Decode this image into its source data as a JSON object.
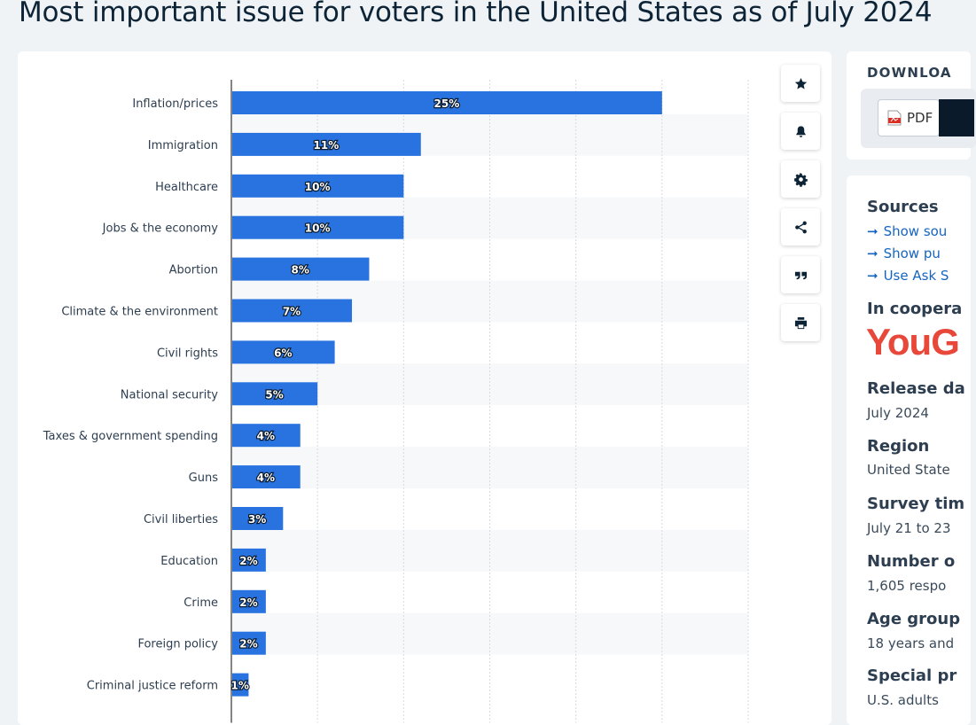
{
  "page": {
    "title": "Most important issue for voters in the United States as of July 2024"
  },
  "chart_data": {
    "type": "bar",
    "orientation": "horizontal",
    "title": "Most important issue for voters in the United States as of July 2024",
    "xlabel": "",
    "ylabel": "",
    "xlim": [
      0,
      30
    ],
    "grid": true,
    "value_suffix": "%",
    "categories": [
      "Inflation/prices",
      "Immigration",
      "Healthcare",
      "Jobs & the economy",
      "Abortion",
      "Climate & the environment",
      "Civil rights",
      "National security",
      "Taxes & government spending",
      "Guns",
      "Civil liberties",
      "Education",
      "Crime",
      "Foreign policy",
      "Criminal justice reform"
    ],
    "values": [
      25,
      11,
      10,
      10,
      8,
      7,
      6,
      5,
      4,
      4,
      3,
      2,
      2,
      2,
      1
    ],
    "bar_color": "#2873e0"
  },
  "toolbar": {
    "icons": [
      "star-icon",
      "bell-icon",
      "gear-icon",
      "share-icon",
      "quote-icon",
      "print-icon"
    ]
  },
  "download": {
    "title": "DOWNLOA",
    "pdf_label": "PDF"
  },
  "sidebar": {
    "sources_heading": "Sources",
    "links": [
      "Show sou",
      "Show pu",
      "Use Ask S"
    ],
    "cooperation_heading": "In coopera",
    "logo_text": "YouG",
    "release_heading": "Release da",
    "release_value": "July 2024",
    "region_heading": "Region",
    "region_value": "United State",
    "survey_heading": "Survey tim",
    "survey_value": "July 21 to 23",
    "number_heading": "Number o",
    "number_value": "1,605 respo",
    "age_heading": "Age group",
    "age_value": "18 years and",
    "special_heading": "Special pr",
    "special_value": "U.S. adults"
  }
}
